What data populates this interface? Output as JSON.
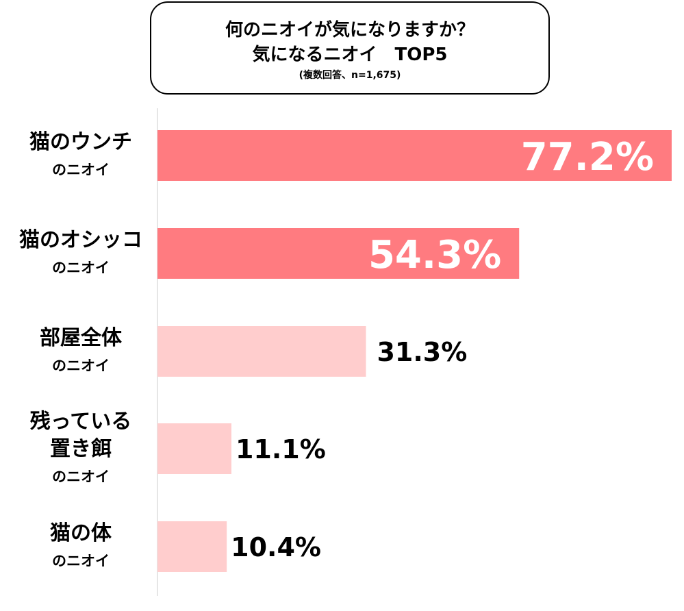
{
  "title_box": {
    "line1": "何のニオイが気になりますか？",
    "line2": "気になるニオイ　TOP5",
    "subtitle": "(複数回答、n=1,675)"
  },
  "colors": {
    "bar_strong": "#ff7b80",
    "bar_light": "#ffcdcd",
    "label_on_bar": "#ffffff",
    "label_outside": "#000000",
    "axis_line": "#e6e6e6"
  },
  "chart_data": {
    "type": "bar",
    "orientation": "horizontal",
    "title": "何のニオイが気になりますか？ 気になるニオイ　TOP5",
    "subtitle": "(複数回答、n=1,675)",
    "unit": "%",
    "categories": [
      [
        "猫のウンチ",
        "のニオイ"
      ],
      [
        "猫のオシッコ",
        "のニオイ"
      ],
      [
        "部屋全体",
        "のニオイ"
      ],
      [
        "残っている",
        "置き餌",
        "のニオイ"
      ],
      [
        "猫の体",
        "のニオイ"
      ]
    ],
    "values": [
      77.2,
      54.3,
      31.3,
      11.1,
      10.4
    ],
    "value_labels": [
      "77.2%",
      "54.3%",
      "31.3%",
      "11.1%",
      "10.4%"
    ],
    "highlight": [
      true,
      true,
      false,
      false,
      false
    ],
    "xlim": [
      0,
      77.2
    ],
    "grid": false,
    "legend": "none"
  }
}
